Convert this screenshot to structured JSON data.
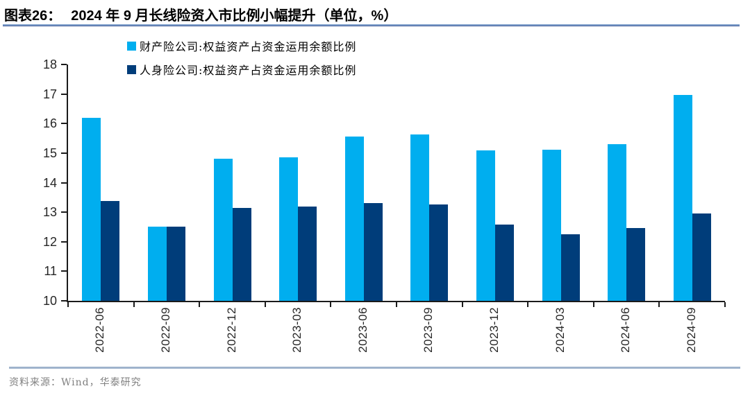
{
  "title": {
    "label": "图表26：",
    "text": "2024 年 9 月长线险资入市比例小幅提升（单位，%）"
  },
  "legend": [
    {
      "label": "财产险公司:权益资产占资金运用余额比例",
      "color": "#00AEEF"
    },
    {
      "label": "人身险公司:权益资产占资金运用余额比例",
      "color": "#003D7A"
    }
  ],
  "source": {
    "text": "资料来源：Wind，华泰研究"
  },
  "colors": {
    "series_property": "#00AEEF",
    "series_life": "#003D7A",
    "title_rule": "#7B9CC9",
    "footer_rule": "#9FB3CC",
    "axis": "#1A1A1A",
    "source_text": "#808080"
  },
  "chart_data": {
    "type": "bar",
    "title": "2024 年 9 月长线险资入市比例小幅提升（单位，%）",
    "categories": [
      "2022-06",
      "2022-09",
      "2022-12",
      "2023-03",
      "2023-06",
      "2023-09",
      "2023-12",
      "2024-03",
      "2024-06",
      "2024-09"
    ],
    "series": [
      {
        "name": "财产险公司:权益资产占资金运用余额比例",
        "color": "#00AEEF",
        "values": [
          16.2,
          12.5,
          14.82,
          14.86,
          15.55,
          15.62,
          15.08,
          15.12,
          15.3,
          16.97
        ]
      },
      {
        "name": "人身险公司:权益资产占资金运用余额比例",
        "color": "#003D7A",
        "values": [
          13.37,
          12.5,
          13.14,
          13.2,
          13.3,
          13.26,
          12.58,
          12.25,
          12.47,
          12.96
        ]
      }
    ],
    "xlabel": "",
    "ylabel": "",
    "ylim": [
      10,
      18
    ],
    "ytick_step": 1,
    "grid": false,
    "legend_position": "top-left"
  }
}
